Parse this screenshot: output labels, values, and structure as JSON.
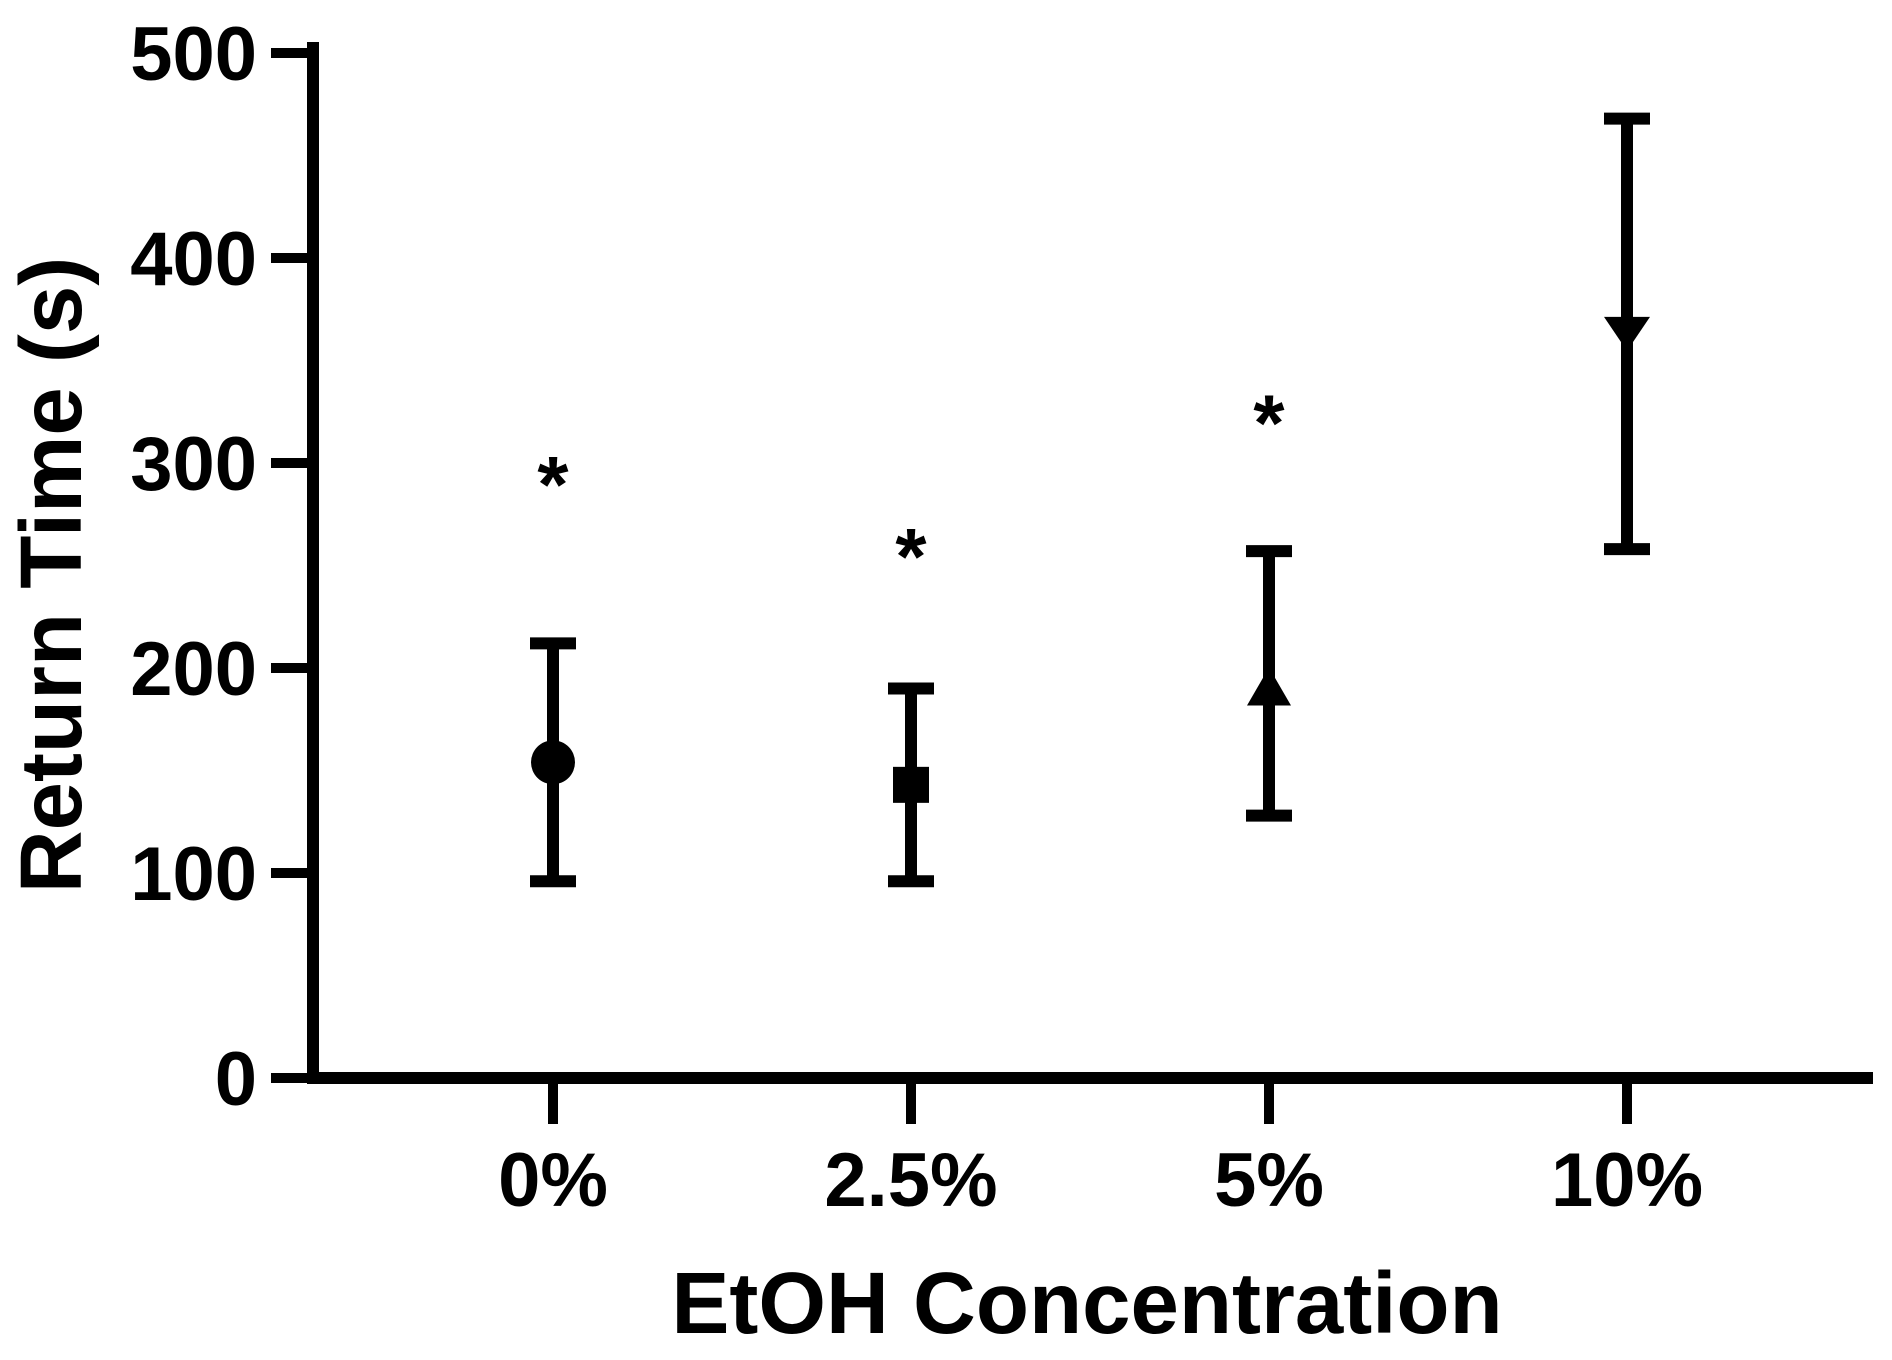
{
  "figure": {
    "background": "#ffffff",
    "ink_color": "#000000"
  },
  "chart_data": {
    "type": "scatter",
    "title": "",
    "xlabel": "EtOH Concentration",
    "ylabel": "Return Time (s)",
    "x_tick_labels": [
      "0%",
      "2.5%",
      "5%",
      "10%"
    ],
    "y_ticks": [
      0,
      100,
      200,
      300,
      400,
      500
    ],
    "ylim": [
      0,
      500
    ],
    "grid": false,
    "legend": "none",
    "error_bar_style": "vertical error bars with caps (mean ± SD)",
    "points": [
      {
        "category": "0%",
        "marker": "circle",
        "mean": 154,
        "upper": 212,
        "lower": 96,
        "significance": "*",
        "significance_y": 297
      },
      {
        "category": "2.5%",
        "marker": "square",
        "mean": 143,
        "upper": 190,
        "lower": 96,
        "significance": "*",
        "significance_y": 262
      },
      {
        "category": "5%",
        "marker": "triangle-up",
        "mean": 190,
        "upper": 257,
        "lower": 128,
        "significance": "*",
        "significance_y": 327
      },
      {
        "category": "10%",
        "marker": "triangle-down",
        "mean": 363,
        "upper": 468,
        "lower": 258,
        "significance": "",
        "significance_y": null
      }
    ]
  }
}
